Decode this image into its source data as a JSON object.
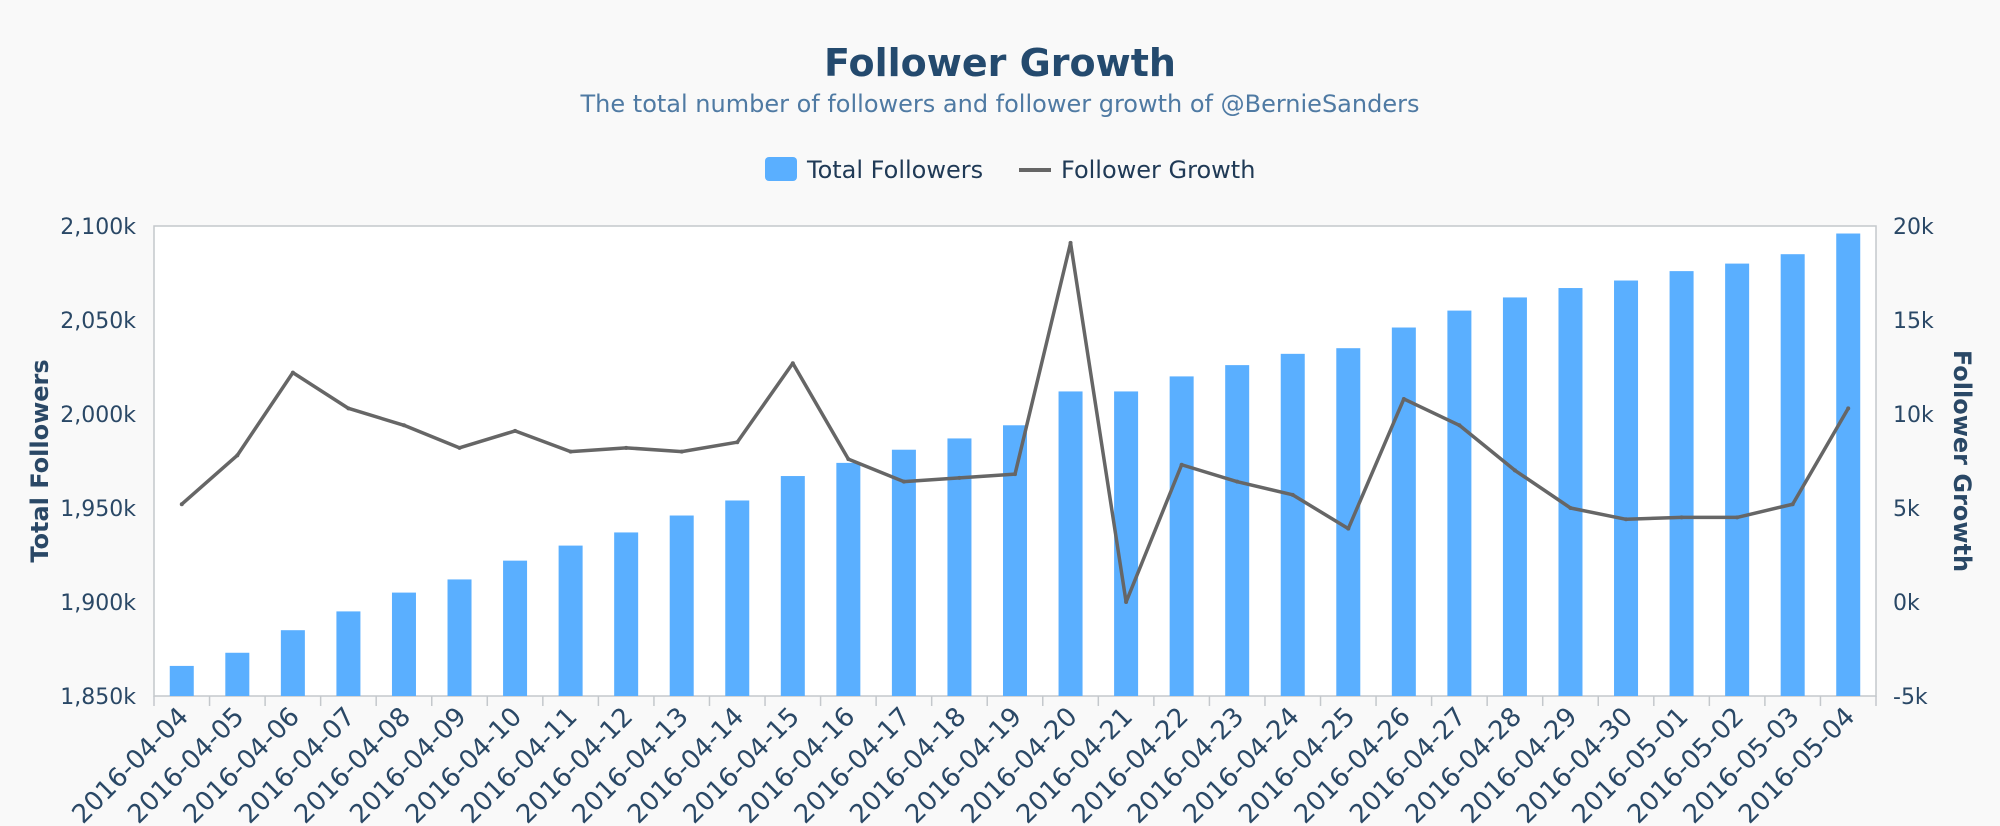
{
  "chart_data": {
    "type": "bar",
    "title": "Follower Growth",
    "subtitle": "The total number of followers and follower growth of @BernieSanders",
    "legend": {
      "placement": "top-center"
    },
    "categories": [
      "2016-04-04",
      "2016-04-05",
      "2016-04-06",
      "2016-04-07",
      "2016-04-08",
      "2016-04-09",
      "2016-04-10",
      "2016-04-11",
      "2016-04-12",
      "2016-04-13",
      "2016-04-14",
      "2016-04-15",
      "2016-04-16",
      "2016-04-17",
      "2016-04-18",
      "2016-04-19",
      "2016-04-20",
      "2016-04-21",
      "2016-04-22",
      "2016-04-23",
      "2016-04-24",
      "2016-04-25",
      "2016-04-26",
      "2016-04-27",
      "2016-04-28",
      "2016-04-29",
      "2016-04-30",
      "2016-05-01",
      "2016-05-02",
      "2016-05-03",
      "2016-05-04"
    ],
    "series": [
      {
        "name": "Total Followers",
        "type": "bar",
        "axis": "left",
        "color": "#5aafff",
        "values": [
          1866000,
          1873000,
          1885000,
          1895000,
          1905000,
          1912000,
          1922000,
          1930000,
          1937000,
          1946000,
          1954000,
          1967000,
          1974000,
          1981000,
          1987000,
          1994000,
          2012000,
          2012000,
          2020000,
          2026000,
          2032000,
          2035000,
          2046000,
          2055000,
          2062000,
          2067000,
          2071000,
          2076000,
          2080000,
          2085000,
          2096000
        ]
      },
      {
        "name": "Follower Growth",
        "type": "line",
        "axis": "right",
        "color": "#666666",
        "values": [
          5200,
          7800,
          12200,
          10300,
          9400,
          8200,
          9100,
          8000,
          8200,
          8000,
          8500,
          12700,
          7600,
          6400,
          6600,
          6800,
          19100,
          0,
          7300,
          6400,
          5700,
          3900,
          10800,
          9400,
          7000,
          5000,
          4400,
          4500,
          4500,
          5200,
          10300
        ]
      }
    ],
    "y_left": {
      "label": "Total Followers",
      "range": [
        1850000,
        2100000
      ],
      "ticks": [
        {
          "value": 1850000,
          "label": "1,850k"
        },
        {
          "value": 1900000,
          "label": "1,900k"
        },
        {
          "value": 1950000,
          "label": "1,950k"
        },
        {
          "value": 2000000,
          "label": "2,000k"
        },
        {
          "value": 2050000,
          "label": "2,050k"
        },
        {
          "value": 2100000,
          "label": "2,100k"
        }
      ]
    },
    "y_right": {
      "label": "Follower Growth",
      "range": [
        -5000,
        20000
      ],
      "ticks": [
        {
          "value": -5000,
          "label": "-5k"
        },
        {
          "value": 0,
          "label": "0k"
        },
        {
          "value": 5000,
          "label": "5k"
        },
        {
          "value": 10000,
          "label": "10k"
        },
        {
          "value": 15000,
          "label": "15k"
        },
        {
          "value": 20000,
          "label": "20k"
        }
      ]
    },
    "grid": false
  }
}
